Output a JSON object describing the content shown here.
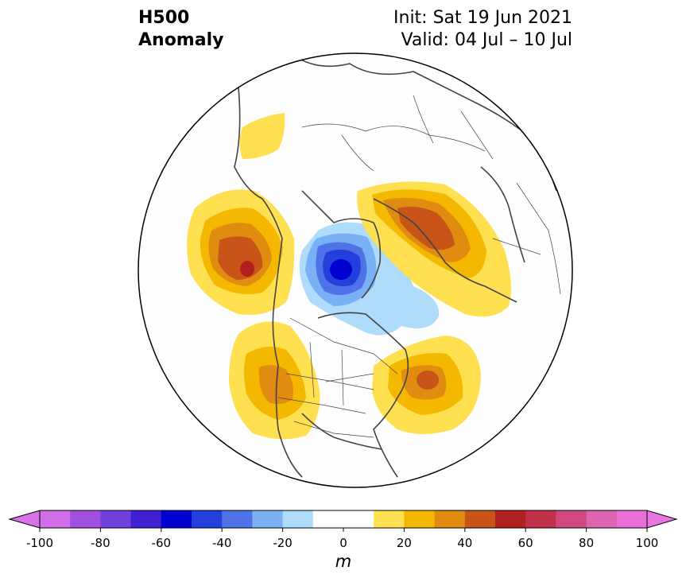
{
  "title": {
    "line1": "H500",
    "line2": "Anomaly",
    "init": "Init: Sat 19 Jun 2021",
    "valid": "Valid: 04 Jul – 10 Jul"
  },
  "colorbar": {
    "unit": "m",
    "min": -100,
    "max": 100,
    "step": 10,
    "tick_labels": [
      "-100",
      "-80",
      "-60",
      "-40",
      "-20",
      "0",
      "20",
      "40",
      "60",
      "80",
      "100"
    ],
    "colors": [
      "#d26fe8",
      "#a050e0",
      "#7040dc",
      "#4020d0",
      "#0000d0",
      "#2440dc",
      "#4f72e8",
      "#7ab0f4",
      "#b0dcfc",
      "#ffffff",
      "#ffffff",
      "#ffe050",
      "#f4b800",
      "#e08c10",
      "#c85418",
      "#b02020",
      "#c03048",
      "#d04880",
      "#dc64b0",
      "#e870d8"
    ],
    "extend_low_color": "#d870e8",
    "extend_high_color": "#e878e0"
  },
  "map": {
    "projection": "north-polar-stereographic",
    "field": "500 hPa geopotential height anomaly",
    "anomaly_centers": [
      {
        "region": "Gulf of Alaska / NE Pacific",
        "peak_m": 55,
        "sign": "positive"
      },
      {
        "region": "Northern Europe / Scandinavia",
        "peak_m": 45,
        "sign": "positive"
      },
      {
        "region": "Western US / Pacific Northwest",
        "peak_m": 35,
        "sign": "positive"
      },
      {
        "region": "NE Canada / Labrador",
        "peak_m": 40,
        "sign": "positive"
      },
      {
        "region": "Greenland / Baffin Bay",
        "peak_m": -55,
        "sign": "negative"
      }
    ]
  }
}
